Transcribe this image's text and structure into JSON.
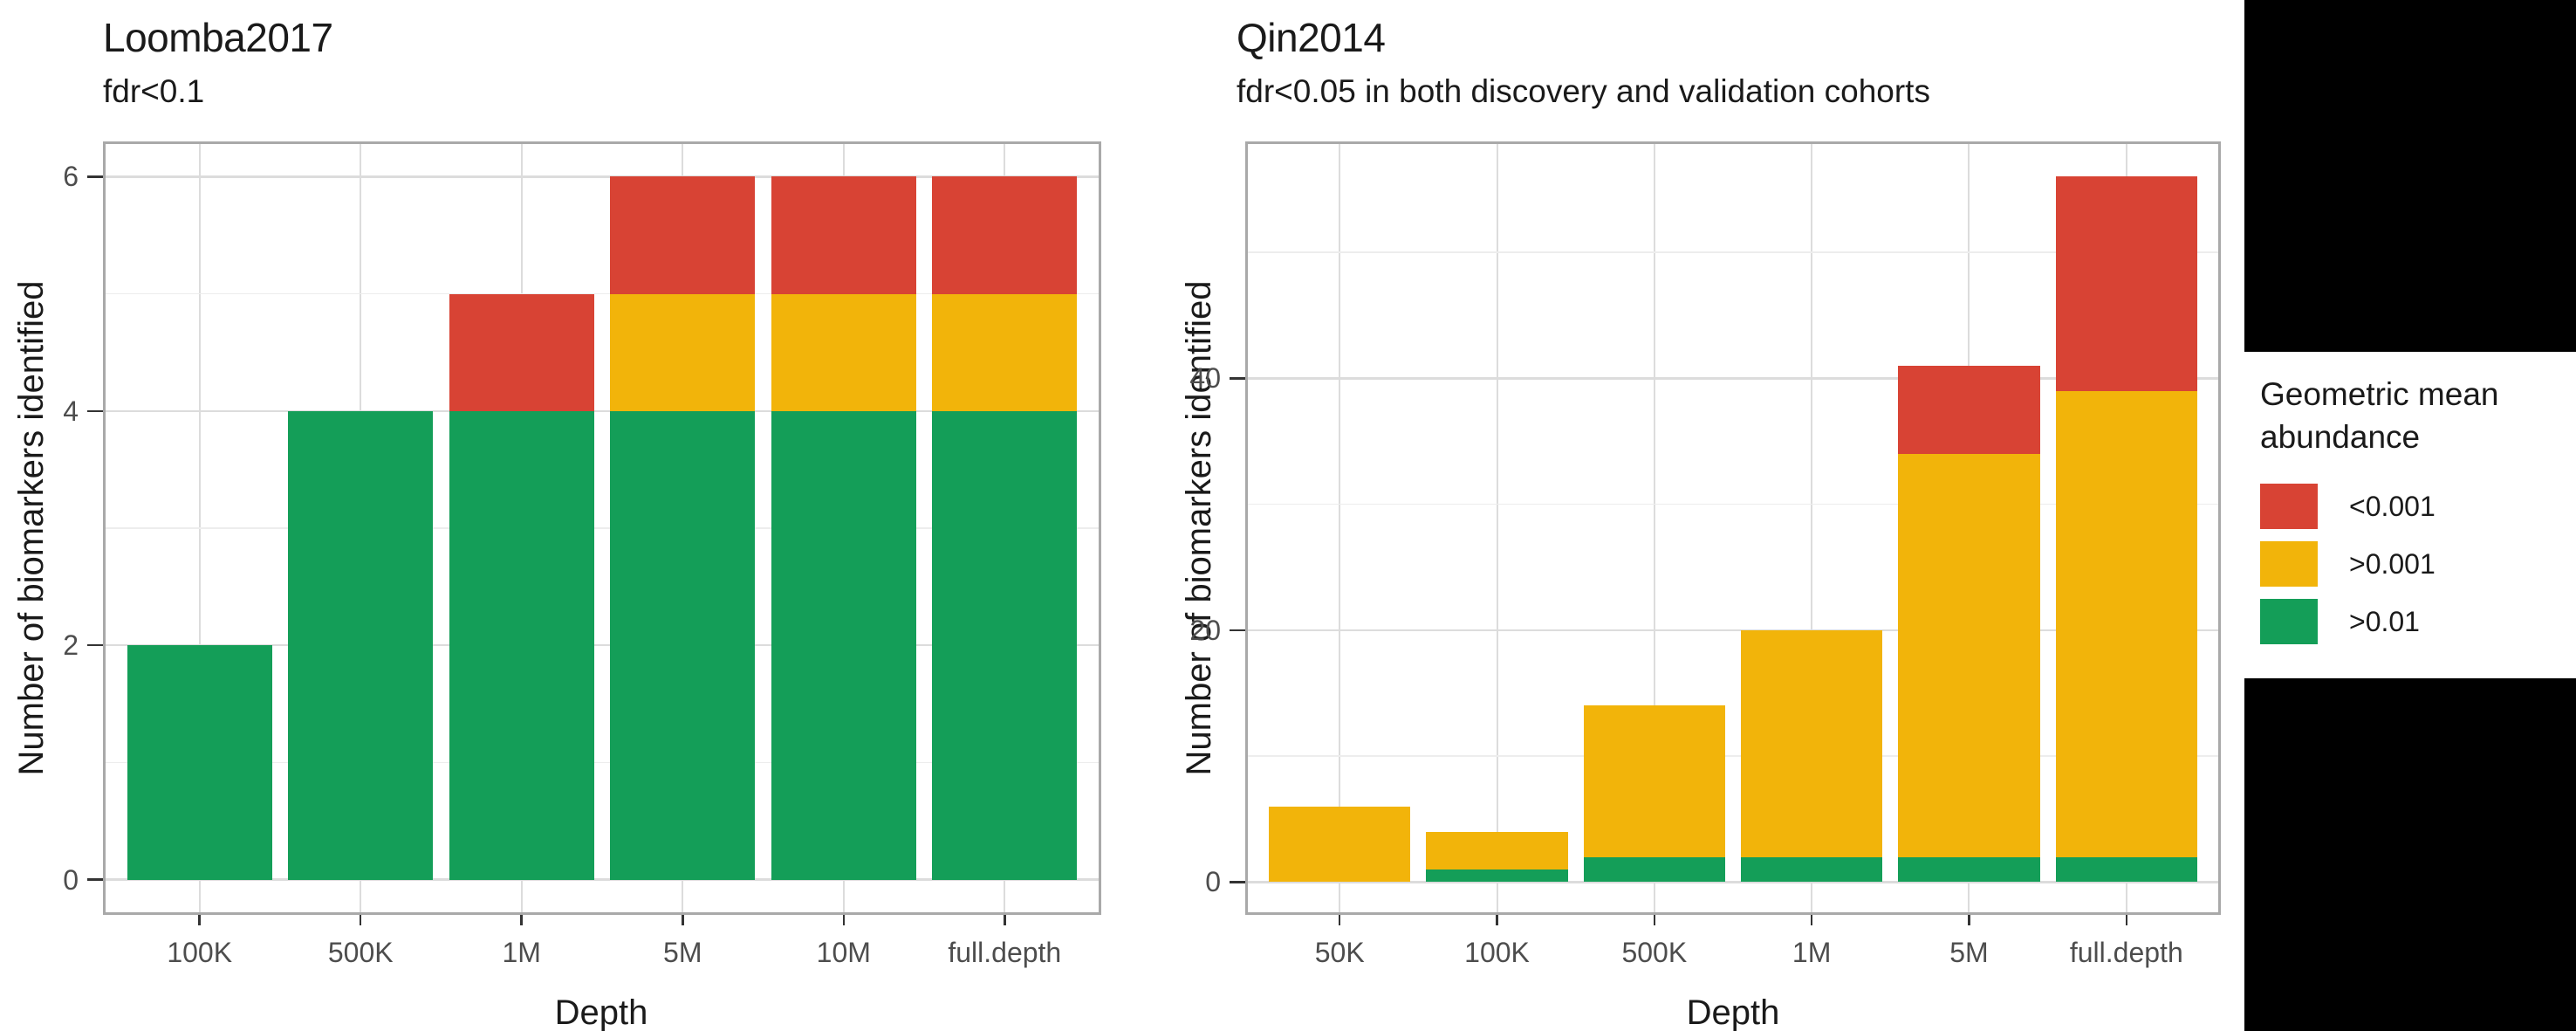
{
  "colors": {
    "red": "#D84334",
    "yellow": "#F2B40A",
    "green": "#149E58",
    "grid_major": "#DCDCDC",
    "grid_minor": "#EDEDED",
    "panel_border": "#A9A9A9",
    "tick_mark": "#333333",
    "tick_label": "#4D4D4D",
    "text": "#1A1A1A",
    "redaction": "#000000"
  },
  "legend": {
    "title_lines": [
      "Geometric mean",
      "abundance"
    ],
    "items": [
      {
        "label": "<0.001",
        "color": "red"
      },
      {
        "label": ">0.001",
        "color": "yellow"
      },
      {
        "label": ">0.01",
        "color": "green"
      }
    ]
  },
  "chart_data": [
    {
      "type": "bar",
      "stacked": true,
      "title": "Loomba2017",
      "subtitle": "fdr<0.1",
      "xlabel": "Depth",
      "ylabel": "Number of biomarkers identified",
      "categories": [
        "100K",
        "500K",
        "1M",
        "5M",
        "10M",
        "full.depth"
      ],
      "series": [
        {
          "name": ">0.01",
          "color": "green",
          "values": [
            2,
            4,
            4,
            4,
            4,
            4
          ]
        },
        {
          "name": ">0.001",
          "color": "yellow",
          "values": [
            0,
            0,
            0,
            1,
            1,
            1
          ]
        },
        {
          "name": "<0.001",
          "color": "red",
          "values": [
            0,
            0,
            1,
            1,
            1,
            1
          ]
        }
      ],
      "totals": [
        2,
        4,
        5,
        6,
        6,
        6
      ],
      "y_ticks": [
        0,
        2,
        4,
        6
      ],
      "y_minor": [
        1,
        3,
        5
      ],
      "ylim": [
        -0.3,
        6.3
      ],
      "grid": true,
      "legend_position": "right"
    },
    {
      "type": "bar",
      "stacked": true,
      "title": "Qin2014",
      "subtitle": "fdr<0.05 in both discovery and validation cohorts",
      "xlabel": "Depth",
      "ylabel": "Number of biomarkers identified",
      "categories": [
        "50K",
        "100K",
        "500K",
        "1M",
        "5M",
        "full.depth"
      ],
      "series": [
        {
          "name": ">0.01",
          "color": "green",
          "values": [
            0,
            1,
            2,
            2,
            2,
            2
          ]
        },
        {
          "name": ">0.001",
          "color": "yellow",
          "values": [
            6,
            3,
            12,
            18,
            32,
            37
          ]
        },
        {
          "name": "<0.001",
          "color": "red",
          "values": [
            0,
            0,
            0,
            0,
            7,
            17
          ]
        }
      ],
      "totals": [
        6,
        4,
        14,
        20,
        41,
        56
      ],
      "y_ticks": [
        0,
        20,
        40
      ],
      "y_minor": [
        10,
        30,
        50
      ],
      "ylim": [
        -2.6,
        58.8
      ],
      "grid": true,
      "legend_position": "right"
    }
  ]
}
